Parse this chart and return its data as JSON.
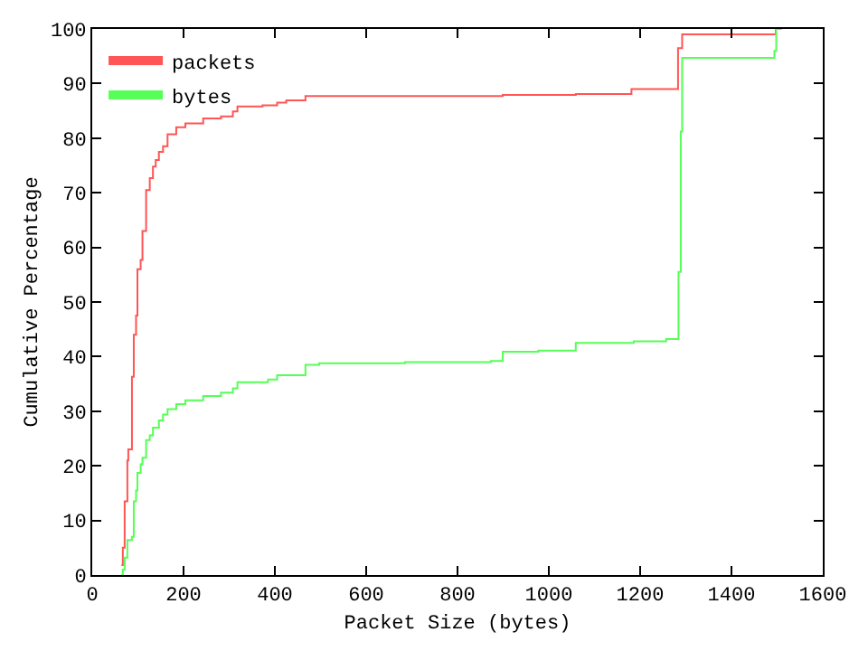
{
  "chart_data": {
    "type": "step",
    "xlabel": "Packet Size (bytes)",
    "ylabel": "Cumulative Percentage",
    "xlim": [
      0,
      1600
    ],
    "ylim": [
      0,
      100
    ],
    "xticks": [
      0,
      200,
      400,
      600,
      800,
      1000,
      1200,
      1400,
      1600
    ],
    "yticks": [
      0,
      10,
      20,
      30,
      40,
      50,
      60,
      70,
      80,
      90,
      100
    ],
    "legend": "top left",
    "marker": "none",
    "line_style": "solid",
    "series": [
      {
        "name": "packets",
        "color": "#ff5555",
        "x": [
          64,
          67,
          71,
          77,
          79,
          87,
          91,
          96,
          99,
          106,
          110,
          118,
          126,
          133,
          139,
          146,
          155,
          165,
          184,
          204,
          243,
          282,
          308,
          318,
          373,
          405,
          425,
          467,
          899,
          1059,
          1181,
          1283,
          1292,
          1497,
          1510
        ],
        "values": [
          1.8,
          5,
          13.5,
          21,
          23,
          36.3,
          44,
          47.5,
          56,
          57.7,
          63,
          70.5,
          72.7,
          74.8,
          76,
          77.5,
          78.5,
          80.7,
          82,
          82.7,
          83.6,
          84,
          84.9,
          85.8,
          86,
          86.5,
          86.9,
          87.7,
          87.9,
          88.1,
          89,
          96.5,
          99,
          100,
          100
        ]
      },
      {
        "name": "bytes",
        "color": "#55ff55",
        "x": [
          64,
          67,
          71,
          77,
          87,
          91,
          96,
          99,
          106,
          110,
          118,
          126,
          133,
          146,
          155,
          165,
          184,
          204,
          243,
          282,
          308,
          318,
          385,
          405,
          467,
          497,
          685,
          873,
          899,
          977,
          1059,
          1186,
          1257,
          1284,
          1289,
          1292,
          1494,
          1498,
          1510
        ],
        "values": [
          0,
          1,
          3.2,
          6.4,
          7,
          13.5,
          15.5,
          18.7,
          20.3,
          21.5,
          24.7,
          25.6,
          27,
          28.3,
          29.4,
          30.4,
          31.3,
          32,
          32.8,
          33.4,
          34.2,
          35.3,
          35.8,
          36.6,
          38.5,
          38.8,
          39,
          39.2,
          40.9,
          41.1,
          42.5,
          42.8,
          43.2,
          55.5,
          81.2,
          94.7,
          96,
          100,
          100
        ]
      }
    ]
  }
}
